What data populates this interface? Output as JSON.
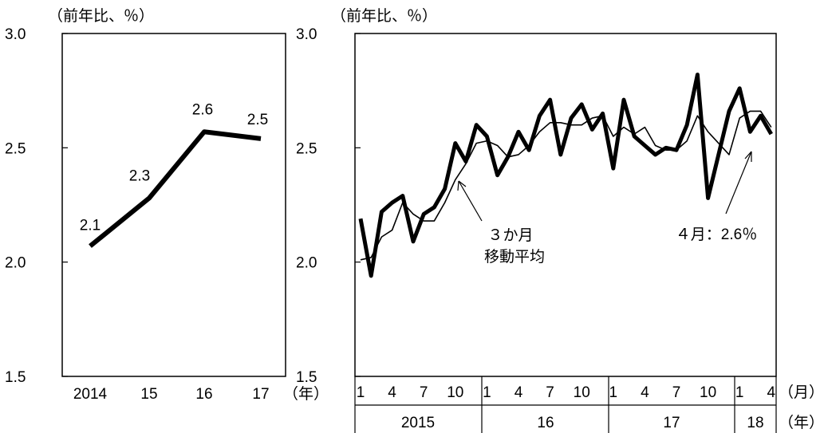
{
  "chart_data": [
    {
      "type": "line",
      "unit_label": "（前年比、％）",
      "xlabel": "（年）",
      "ylim": [
        1.5,
        3.0
      ],
      "y_ticks": [
        "3.0",
        "2.5",
        "2.0",
        "1.5"
      ],
      "categories": [
        "2014",
        "15",
        "16",
        "17"
      ],
      "series": [
        {
          "values": [
            2.07,
            2.28,
            2.57,
            2.54
          ],
          "data_labels": [
            "2.1",
            "2.3",
            "2.6",
            "2.5"
          ]
        }
      ],
      "grid": false
    },
    {
      "type": "line",
      "unit_label": "（前年比、％）",
      "ylim": [
        1.5,
        3.0
      ],
      "y_ticks": [
        "3.0",
        "2.5",
        "2.0",
        "1.5"
      ],
      "month_ticks": [
        "1",
        "4",
        "7",
        "10",
        "1",
        "4",
        "7",
        "10",
        "1",
        "4",
        "7",
        "10",
        "1",
        "4"
      ],
      "month_axis_label": "（月）",
      "year_groups": [
        "2015",
        "16",
        "17",
        "18"
      ],
      "year_axis_label": "（年）",
      "series": [
        {
          "style": "thick",
          "values": [
            2.19,
            1.94,
            2.22,
            2.26,
            2.29,
            2.09,
            2.21,
            2.24,
            2.32,
            2.52,
            2.44,
            2.6,
            2.55,
            2.38,
            2.46,
            2.57,
            2.49,
            2.64,
            2.71,
            2.47,
            2.63,
            2.69,
            2.58,
            2.65,
            2.41,
            2.71,
            2.55,
            2.51,
            2.47,
            2.5,
            2.49,
            2.6,
            2.82,
            2.28,
            2.47,
            2.66,
            2.76,
            2.57,
            2.64,
            2.56
          ]
        },
        {
          "style": "thin",
          "values": [
            2.01,
            2.02,
            2.11,
            2.14,
            2.26,
            2.21,
            2.18,
            2.18,
            2.26,
            2.36,
            2.43,
            2.52,
            2.53,
            2.51,
            2.46,
            2.47,
            2.51,
            2.57,
            2.61,
            2.61,
            2.6,
            2.6,
            2.63,
            2.64,
            2.55,
            2.59,
            2.56,
            2.59,
            2.51,
            2.49,
            2.49,
            2.53,
            2.64,
            2.57,
            2.52,
            2.47,
            2.63,
            2.66,
            2.66,
            2.59
          ]
        }
      ],
      "annotations": [
        {
          "text_lines": [
            "３か月",
            "移動平均"
          ]
        },
        {
          "text_lines": [
            "４月：2.6％"
          ]
        }
      ],
      "grid": false
    }
  ]
}
